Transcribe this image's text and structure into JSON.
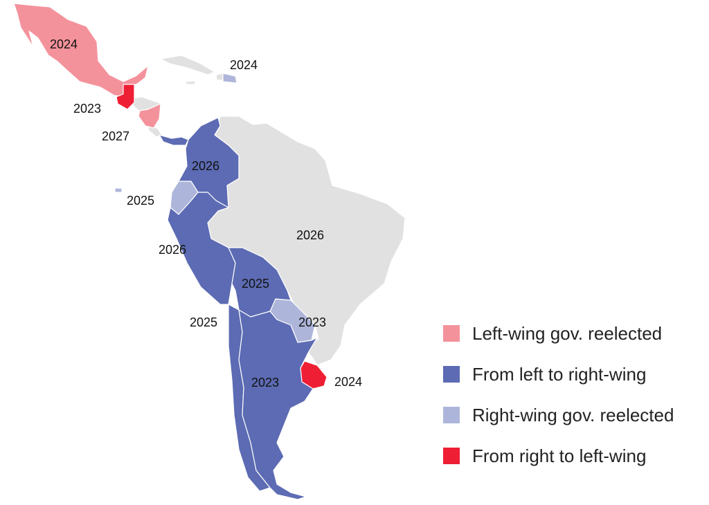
{
  "colors": {
    "left_reelected": "#f4929c",
    "left_to_right": "#5c6bb3",
    "right_reelected": "#aeb5da",
    "right_to_left": "#ee1f34",
    "no_data": "#e1e1e1",
    "border": "#ffffff"
  },
  "legend": {
    "items": [
      {
        "label": "Left-wing gov. reelected",
        "color": "#f4929c"
      },
      {
        "label": "From left to right-wing",
        "color": "#5c6bb3"
      },
      {
        "label": "Right-wing gov. reelected",
        "color": "#aeb5da"
      },
      {
        "label": "From right to left-wing",
        "color": "#ee1f34"
      }
    ]
  },
  "map_labels": {
    "mexico": "2024",
    "dominican_republic": "2024",
    "guatemala": "2023",
    "nicaragua": "2027",
    "colombia": "2026",
    "ecuador": "2025",
    "peru": "2026",
    "brazil": "2026",
    "bolivia": "2025",
    "chile": "2025",
    "paraguay": "2023",
    "argentina": "2023",
    "uruguay": "2024"
  }
}
